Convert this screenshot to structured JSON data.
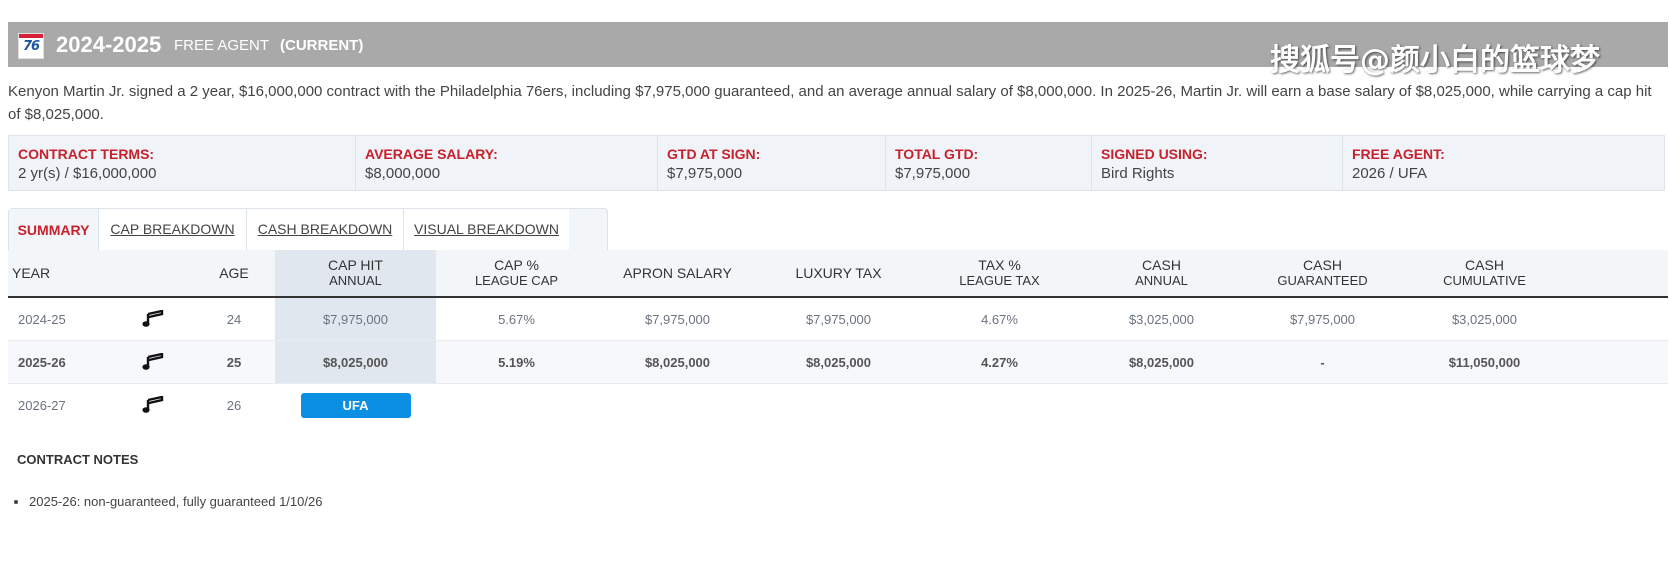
{
  "header": {
    "logo_text": "76",
    "season": "2024-2025",
    "status": "FREE AGENT",
    "current": "(CURRENT)",
    "watermark": "搜狐号@颜小白的篮球梦"
  },
  "description": "Kenyon Martin Jr. signed a 2 year, $16,000,000 contract with the Philadelphia 76ers, including $7,975,000 guaranteed, and an average annual salary of $8,000,000. In 2025-26, Martin Jr. will earn a base salary of $8,025,000, while carrying a cap hit of $8,025,000.",
  "terms": [
    {
      "label": "CONTRACT TERMS:",
      "value": "2 yr(s) / $16,000,000"
    },
    {
      "label": "AVERAGE SALARY:",
      "value": "$8,000,000"
    },
    {
      "label": "GTD AT SIGN:",
      "value": "$7,975,000"
    },
    {
      "label": "TOTAL GTD:",
      "value": "$7,975,000"
    },
    {
      "label": "SIGNED USING:",
      "value": "Bird Rights"
    },
    {
      "label": "FREE AGENT:",
      "value": "2026 / UFA"
    }
  ],
  "tabs": [
    "SUMMARY",
    "CAP BREAKDOWN",
    "CASH BREAKDOWN",
    "VISUAL BREAKDOWN"
  ],
  "columns": {
    "year": "YEAR",
    "age": "AGE",
    "cap_hit": "CAP HIT",
    "cap_hit_sub": "ANNUAL",
    "cap_pct": "CAP %",
    "cap_pct_sub": "LEAGUE CAP",
    "apron": "APRON SALARY",
    "luxury": "LUXURY TAX",
    "tax_pct": "TAX %",
    "tax_pct_sub": "LEAGUE TAX",
    "cash": "CASH",
    "cash_sub": "ANNUAL",
    "cash_gtd": "CASH",
    "cash_gtd_sub": "GUARANTEED",
    "cash_cum": "CASH",
    "cash_cum_sub": "CUMULATIVE"
  },
  "rows": [
    {
      "year": "2024-25",
      "age": "24",
      "cap_hit": "$7,975,000",
      "cap_pct": "5.67%",
      "apron": "$7,975,000",
      "luxury": "$7,975,000",
      "tax_pct": "4.67%",
      "cash": "$3,025,000",
      "cash_gtd": "$7,975,000",
      "cash_cum": "$3,025,000"
    },
    {
      "year": "2025-26",
      "age": "25",
      "cap_hit": "$8,025,000",
      "cap_pct": "5.19%",
      "apron": "$8,025,000",
      "luxury": "$8,025,000",
      "tax_pct": "4.27%",
      "cash": "$8,025,000",
      "cash_gtd": "-",
      "cash_cum": "$11,050,000"
    },
    {
      "year": "2026-27",
      "age": "26",
      "badge": "UFA"
    }
  ],
  "team_icon": "utah-jazz-note-icon",
  "notes": {
    "title": "CONTRACT NOTES",
    "items": [
      "2025-26: non-guaranteed, fully guaranteed 1/10/26"
    ]
  }
}
